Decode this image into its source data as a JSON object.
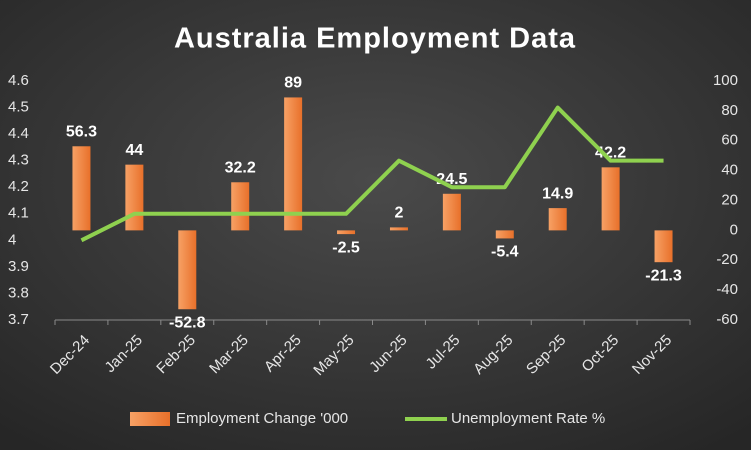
{
  "chart_data": {
    "type": "bar-line",
    "title": "Australia Employment Data",
    "categories": [
      "Dec-24",
      "Jan-25",
      "Feb-25",
      "Mar-25",
      "Apr-25",
      "May-25",
      "Jun-25",
      "Jul-25",
      "Aug-25",
      "Sep-25",
      "Oct-25",
      "Nov-25"
    ],
    "series": [
      {
        "name": "Employment Change '000",
        "type": "bar",
        "axis": "y2",
        "color": "#f07f3c",
        "values": [
          56.3,
          44,
          -52.8,
          32.2,
          89,
          -2.5,
          2,
          24.5,
          -5.4,
          14.9,
          42.2,
          -21.3
        ]
      },
      {
        "name": "Unemployment Rate %",
        "type": "line",
        "axis": "y",
        "color": "#8fd14f",
        "values": [
          4.0,
          4.1,
          4.1,
          4.1,
          4.1,
          4.1,
          4.3,
          4.2,
          4.2,
          4.5,
          4.3,
          4.3
        ]
      }
    ],
    "ylim": [
      3.7,
      4.6
    ],
    "yticks": [
      3.7,
      3.8,
      3.9,
      4,
      4.1,
      4.2,
      4.3,
      4.4,
      4.5,
      4.6
    ],
    "y2lim": [
      -60,
      100
    ],
    "y2ticks": [
      -60,
      -40,
      -20,
      0,
      20,
      40,
      60,
      80,
      100
    ],
    "legend": "bottom"
  }
}
